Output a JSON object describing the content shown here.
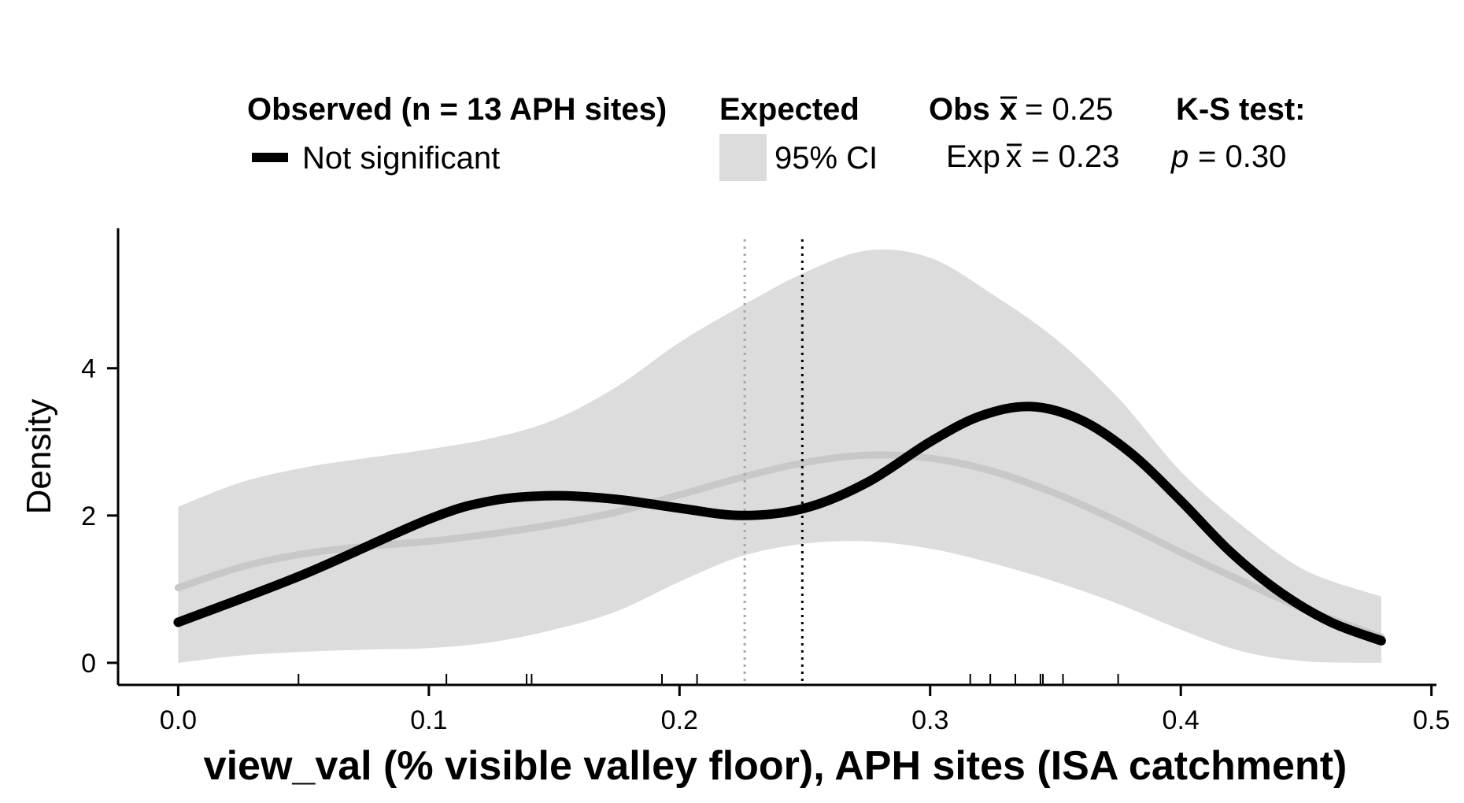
{
  "legend": {
    "observed_title": "Observed (n = 13 APH sites)",
    "observed_item": "Not significant",
    "expected_title": "Expected",
    "expected_item": "95% CI",
    "obs_mean_label": "Obs",
    "obs_mean_value": "= 0.25",
    "exp_mean_label": "Exp",
    "exp_mean_value": "= 0.23",
    "ks_title": "K-S test:",
    "ks_p_symbol": "p",
    "ks_p_value": "= 0.30"
  },
  "chart_data": {
    "type": "line",
    "xlabel": "view_val (% visible valley floor), APH sites (ISA catchment)",
    "ylabel": "Density",
    "xlim": [
      -0.024,
      0.502
    ],
    "ylim": [
      -0.3,
      5.9
    ],
    "x_ticks": [
      0.0,
      0.1,
      0.2,
      0.3,
      0.4,
      0.5
    ],
    "x_tick_labels": [
      "0.0",
      "0.1",
      "0.2",
      "0.3",
      "0.4",
      "0.5"
    ],
    "y_ticks": [
      0,
      2,
      4
    ],
    "y_tick_labels": [
      "0",
      "2",
      "4"
    ],
    "colors": {
      "observed": "#000000",
      "expected_mean": "#c8c8c8",
      "ci_band": "#dcdcdc",
      "exp_mean_line": "#a8a8a8",
      "obs_mean_line": "#000000"
    },
    "series": [
      {
        "name": "Not significant",
        "x": [
          0.0,
          0.05,
          0.1,
          0.125,
          0.15,
          0.175,
          0.2,
          0.225,
          0.25,
          0.275,
          0.3,
          0.32,
          0.34,
          0.36,
          0.38,
          0.4,
          0.42,
          0.44,
          0.46,
          0.48
        ],
        "y": [
          0.55,
          1.2,
          1.95,
          2.2,
          2.27,
          2.22,
          2.1,
          2.0,
          2.1,
          2.45,
          3.0,
          3.35,
          3.48,
          3.3,
          2.85,
          2.2,
          1.5,
          0.95,
          0.55,
          0.3
        ]
      },
      {
        "name": "Expected",
        "x": [
          0.0,
          0.025,
          0.05,
          0.075,
          0.1,
          0.125,
          0.15,
          0.175,
          0.2,
          0.225,
          0.25,
          0.275,
          0.3,
          0.325,
          0.35,
          0.375,
          0.4,
          0.425,
          0.45,
          0.48
        ],
        "y": [
          1.02,
          1.3,
          1.48,
          1.58,
          1.65,
          1.75,
          1.88,
          2.05,
          2.28,
          2.52,
          2.72,
          2.82,
          2.78,
          2.6,
          2.3,
          1.92,
          1.5,
          1.1,
          0.72,
          0.35
        ]
      }
    ],
    "ci_band": {
      "x": [
        0.0,
        0.025,
        0.05,
        0.075,
        0.1,
        0.125,
        0.15,
        0.175,
        0.2,
        0.225,
        0.25,
        0.275,
        0.3,
        0.325,
        0.35,
        0.375,
        0.4,
        0.425,
        0.45,
        0.48
      ],
      "upper": [
        2.12,
        2.45,
        2.65,
        2.78,
        2.9,
        3.05,
        3.3,
        3.75,
        4.35,
        4.85,
        5.3,
        5.6,
        5.5,
        5.0,
        4.4,
        3.6,
        2.6,
        1.85,
        1.25,
        0.9
      ],
      "lower": [
        0.0,
        0.1,
        0.15,
        0.18,
        0.2,
        0.28,
        0.45,
        0.7,
        1.1,
        1.45,
        1.62,
        1.65,
        1.55,
        1.35,
        1.1,
        0.8,
        0.45,
        0.15,
        0.02,
        0.0
      ]
    },
    "rug": [
      0.048,
      0.107,
      0.139,
      0.141,
      0.193,
      0.207,
      0.316,
      0.324,
      0.334,
      0.344,
      0.345,
      0.353,
      0.375
    ],
    "obs_mean": 0.249,
    "exp_mean": 0.226,
    "grid": false,
    "legend_position": "top"
  }
}
